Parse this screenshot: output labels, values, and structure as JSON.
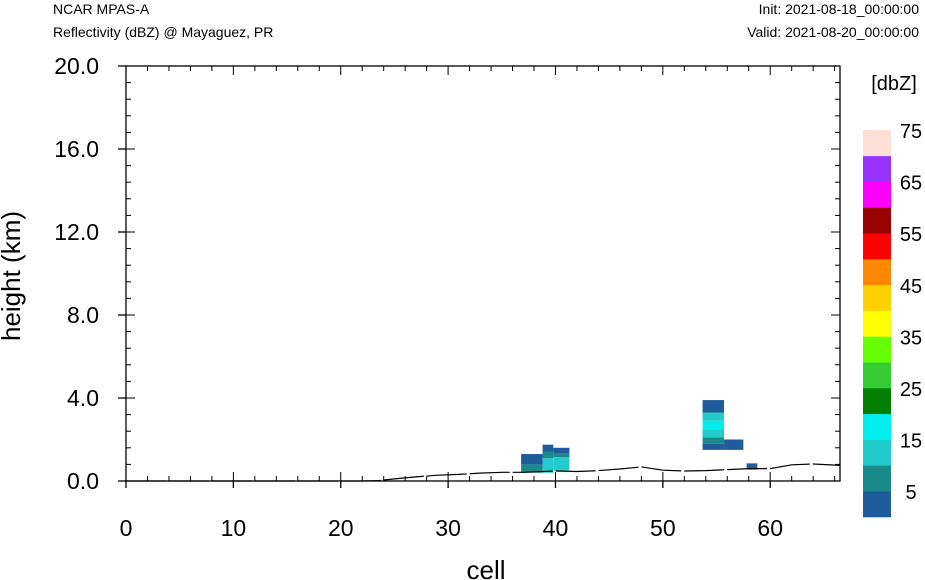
{
  "header": {
    "model": "NCAR MPAS-A",
    "field": "Reflectivity (dBZ) @ Mayaguez, PR",
    "init": "Init: 2021-08-18_00:00:00",
    "valid": "Valid: 2021-08-20_00:00:00"
  },
  "chart_data": {
    "type": "heatmap",
    "xlabel": "cell",
    "ylabel": "height (km)",
    "xlim": [
      0,
      66.5
    ],
    "ylim": [
      0,
      20
    ],
    "xticks": [
      0,
      10,
      20,
      30,
      40,
      50,
      60
    ],
    "xtick_labels": [
      "0",
      "10",
      "20",
      "30",
      "40",
      "50",
      "60"
    ],
    "yticks": [
      0,
      4,
      8,
      12,
      16,
      20
    ],
    "ytick_labels": [
      "0.0",
      "4.0",
      "8.0",
      "12.0",
      "16.0",
      "20.0"
    ],
    "grid": false,
    "terrain_km": [
      [
        0,
        0
      ],
      [
        22,
        0
      ],
      [
        23.5,
        0.02
      ],
      [
        25,
        0.1
      ],
      [
        27,
        0.2
      ],
      [
        29,
        0.28
      ],
      [
        31,
        0.32
      ],
      [
        33,
        0.38
      ],
      [
        35,
        0.42
      ],
      [
        37,
        0.42
      ],
      [
        40,
        0.48
      ],
      [
        42,
        0.46
      ],
      [
        44,
        0.5
      ],
      [
        46,
        0.58
      ],
      [
        48,
        0.68
      ],
      [
        50,
        0.52
      ],
      [
        52,
        0.48
      ],
      [
        54,
        0.5
      ],
      [
        56,
        0.55
      ],
      [
        58,
        0.6
      ],
      [
        60,
        0.6
      ],
      [
        62,
        0.78
      ],
      [
        64,
        0.82
      ],
      [
        66.5,
        0.75
      ]
    ],
    "cells": [
      {
        "x": 36.8,
        "w": 2,
        "y0": 0.4,
        "y1": 0.8,
        "dbz": 5
      },
      {
        "x": 36.8,
        "w": 2,
        "y0": 0.8,
        "y1": 1.3,
        "dbz": 0
      },
      {
        "x": 38.8,
        "w": 1,
        "y0": 0.4,
        "y1": 1.1,
        "dbz": 10
      },
      {
        "x": 38.8,
        "w": 1,
        "y0": 1.1,
        "y1": 1.4,
        "dbz": 5
      },
      {
        "x": 38.8,
        "w": 1,
        "y0": 1.4,
        "y1": 1.75,
        "dbz": 0
      },
      {
        "x": 39.8,
        "w": 1.5,
        "y0": 0.5,
        "y1": 1.15,
        "dbz": 10
      },
      {
        "x": 39.8,
        "w": 1.5,
        "y0": 1.15,
        "y1": 1.35,
        "dbz": 5
      },
      {
        "x": 39.8,
        "w": 1.5,
        "y0": 1.35,
        "y1": 1.6,
        "dbz": 0
      },
      {
        "x": 53.7,
        "w": 2,
        "y0": 1.5,
        "y1": 1.8,
        "dbz": 0
      },
      {
        "x": 53.7,
        "w": 2,
        "y0": 1.8,
        "y1": 2.1,
        "dbz": 5
      },
      {
        "x": 53.7,
        "w": 2,
        "y0": 2.1,
        "y1": 2.5,
        "dbz": 10
      },
      {
        "x": 53.7,
        "w": 2,
        "y0": 2.5,
        "y1": 2.9,
        "dbz": 15
      },
      {
        "x": 53.7,
        "w": 2,
        "y0": 2.9,
        "y1": 3.3,
        "dbz": 10
      },
      {
        "x": 53.7,
        "w": 2,
        "y0": 3.3,
        "y1": 3.9,
        "dbz": 0
      },
      {
        "x": 55.7,
        "w": 1.8,
        "y0": 1.5,
        "y1": 2.0,
        "dbz": 0
      },
      {
        "x": 57.8,
        "w": 1,
        "y0": 0.55,
        "y1": 0.85,
        "dbz": 0
      }
    ],
    "colorbar": {
      "title": "[dbZ]",
      "levels": [
        0,
        5,
        10,
        15,
        20,
        25,
        30,
        35,
        40,
        45,
        50,
        55,
        60,
        65,
        70,
        75
      ],
      "colors": [
        "#1e5c9b",
        "#1a8a8a",
        "#22cccc",
        "#00eeee",
        "#008000",
        "#33cc33",
        "#66ff00",
        "#ffff00",
        "#ffd000",
        "#ff8800",
        "#ff0000",
        "#990000",
        "#ff00ff",
        "#9933ff",
        "#ffe0d6"
      ],
      "labels": [
        "5",
        "15",
        "25",
        "35",
        "45",
        "55",
        "65",
        "75"
      ]
    }
  }
}
